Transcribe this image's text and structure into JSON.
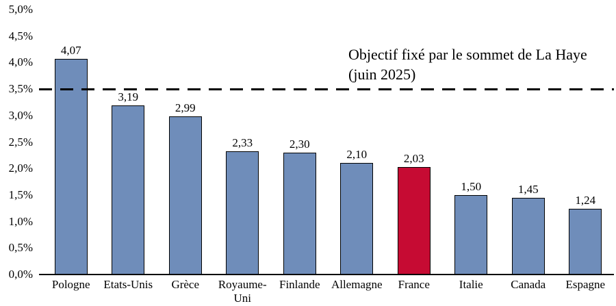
{
  "chart_data": {
    "type": "bar",
    "title": "",
    "xlabel": "",
    "ylabel": "",
    "grid": false,
    "legend": false,
    "categories": [
      "Pologne",
      "Etats-Unis",
      "Grèce",
      "Royaume-Uni",
      "Finlande",
      "Allemagne",
      "France",
      "Italie",
      "Canada",
      "Espagne"
    ],
    "values": [
      4.07,
      3.19,
      2.99,
      2.33,
      2.3,
      2.1,
      2.03,
      1.5,
      1.45,
      1.24
    ],
    "value_labels": [
      "4,07",
      "3,19",
      "2,99",
      "2,33",
      "2,30",
      "2,10",
      "2,03",
      "1,50",
      "1,45",
      "1,24"
    ],
    "unit": "%",
    "highlight_index": 6,
    "highlight_category": "France",
    "colors": {
      "bar_fill": "#6F8DBA",
      "highlight_fill": "#C60B33",
      "bar_border": "#000000",
      "reference_line": "#000000",
      "text": "#000000"
    },
    "y_axis": {
      "min": 0,
      "max": 5,
      "tick_step": 0.5,
      "ticks": [
        {
          "value": 0.0,
          "label": "0,0%"
        },
        {
          "value": 0.5,
          "label": "0,5%"
        },
        {
          "value": 1.0,
          "label": "1,0%"
        },
        {
          "value": 1.5,
          "label": "1,5%"
        },
        {
          "value": 2.0,
          "label": "2,0%"
        },
        {
          "value": 2.5,
          "label": "2,5%"
        },
        {
          "value": 3.0,
          "label": "3,0%"
        },
        {
          "value": 3.5,
          "label": "3,5%"
        },
        {
          "value": 4.0,
          "label": "4,0%"
        },
        {
          "value": 4.5,
          "label": "4,5%"
        },
        {
          "value": 5.0,
          "label": "5,0%"
        }
      ]
    },
    "reference_line": {
      "value": 3.5,
      "style": "dashed"
    },
    "annotation": {
      "line1": "Objectif fixé par le sommet de La Haye",
      "line2": "(juin 2025)"
    }
  }
}
